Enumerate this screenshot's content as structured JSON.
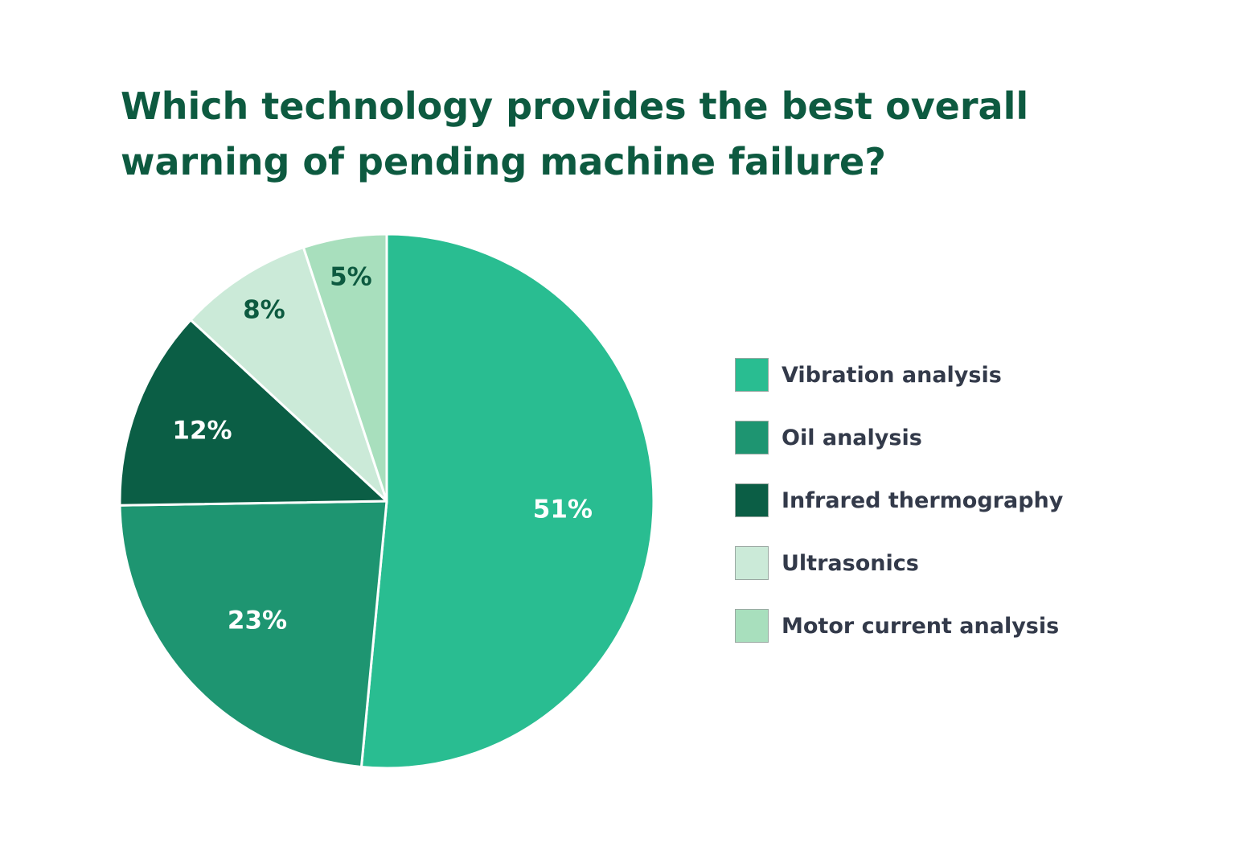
{
  "chart_data": {
    "type": "pie",
    "title_lines": [
      "Which technology provides the best overall",
      "warning of pending machine failure?"
    ],
    "slices": [
      {
        "label": "Vibration analysis",
        "value": 51,
        "display": "51%",
        "color": "#29bd91",
        "text_color": "#ffffff"
      },
      {
        "label": "Oil analysis",
        "value": 23,
        "display": "23%",
        "color": "#1e9571",
        "text_color": "#ffffff"
      },
      {
        "label": "Infrared thermography",
        "value": 12,
        "display": "12%",
        "color": "#0b5e45",
        "text_color": "#ffffff"
      },
      {
        "label": "Ultrasonics",
        "value": 8,
        "display": "8%",
        "color": "#cbead8",
        "text_color": "#0d5a40"
      },
      {
        "label": "Motor current analysis",
        "value": 5,
        "display": "5%",
        "color": "#a8dfbd",
        "text_color": "#0d5a40"
      }
    ],
    "legend_placement": "right"
  }
}
